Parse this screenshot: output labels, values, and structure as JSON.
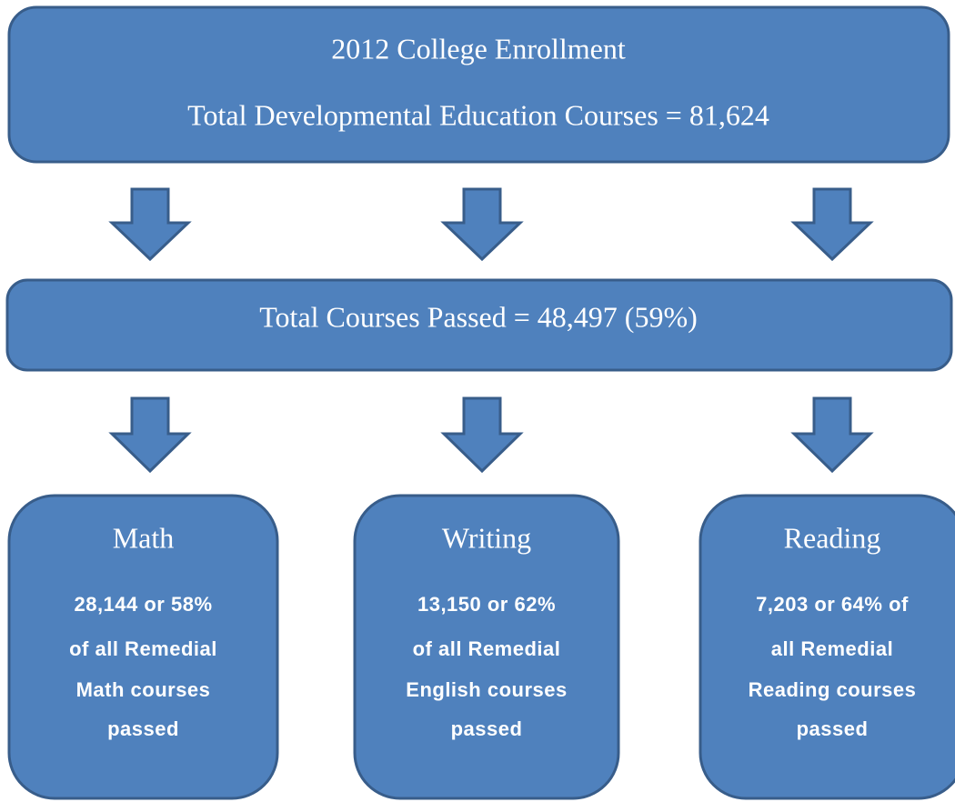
{
  "header": {
    "title": "2012 College Enrollment",
    "total": "Total Developmental Education Courses = 81,624"
  },
  "summary": {
    "text": "Total Courses Passed = 48,497 (59%)"
  },
  "boxes": [
    {
      "title": "Math",
      "lines": [
        "28,144 or 58%",
        "of all Remedial",
        "Math courses",
        "passed"
      ]
    },
    {
      "title": "Writing",
      "lines": [
        "13,150 or 62%",
        "of all Remedial",
        "English courses",
        "passed"
      ]
    },
    {
      "title": "Reading",
      "lines": [
        "7,203 or 64% of",
        "all Remedial",
        "Reading courses",
        "passed"
      ]
    }
  ]
}
